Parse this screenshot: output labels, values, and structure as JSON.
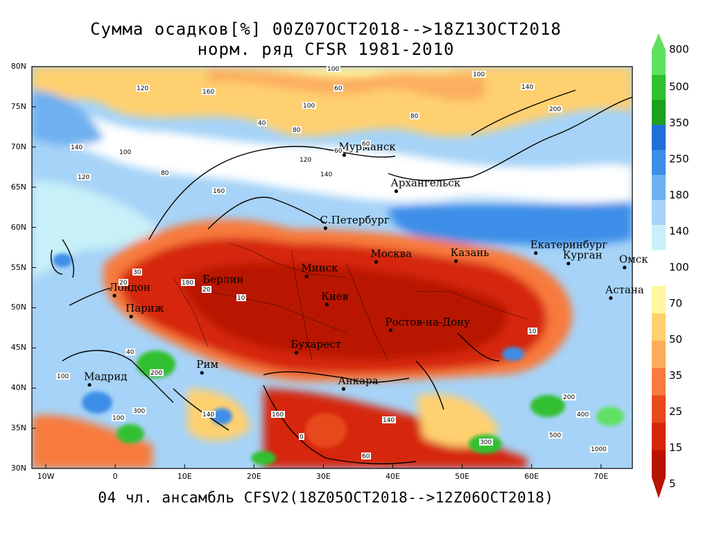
{
  "title": {
    "line1": "Сумма осадков[%] 00Z07OCT2018-->18Z13OCT2018",
    "line2": "норм. ряд CFSR 1981-2010"
  },
  "footer": "04 чл. ансамбль CFSV2(18Z05OCT2018-->12Z06OCT2018)",
  "axes": {
    "lat_labels": [
      "80N",
      "75N",
      "70N",
      "65N",
      "60N",
      "55N",
      "50N",
      "45N",
      "40N",
      "35N",
      "30N"
    ],
    "lon_labels": [
      "10W",
      "0",
      "10E",
      "20E",
      "30E",
      "40E",
      "50E",
      "60E",
      "70E"
    ]
  },
  "colorbar": {
    "labels": [
      "800",
      "500",
      "350",
      "250",
      "180",
      "140",
      "100",
      "70",
      "50",
      "35",
      "25",
      "15",
      "5"
    ],
    "colors": [
      "#60e060",
      "#30c030",
      "#1ea01e",
      "#1e6fd8",
      "#3c8ee8",
      "#6eb0f0",
      "#a6d3f7",
      "#c8f0f8",
      "#fff8a0",
      "#ffd070",
      "#fcae5e",
      "#f87a3c",
      "#e84a1c",
      "#d62808",
      "#b81400"
    ]
  },
  "cities": [
    {
      "name": "Мурманск",
      "lon": 33,
      "lat": 69
    },
    {
      "name": "Архангельск",
      "lon": 40.5,
      "lat": 64.5
    },
    {
      "name": "С.Петербург",
      "lon": 30.3,
      "lat": 59.9
    },
    {
      "name": "Москва",
      "lon": 37.6,
      "lat": 55.7
    },
    {
      "name": "Казань",
      "lon": 49.1,
      "lat": 55.8
    },
    {
      "name": "Екатеринбург",
      "lon": 60.6,
      "lat": 56.8
    },
    {
      "name": "Курган",
      "lon": 65.3,
      "lat": 55.5
    },
    {
      "name": "Омск",
      "lon": 73.4,
      "lat": 55
    },
    {
      "name": "Астана",
      "lon": 71.4,
      "lat": 51.2
    },
    {
      "name": "Минск",
      "lon": 27.6,
      "lat": 53.9
    },
    {
      "name": "Киев",
      "lon": 30.5,
      "lat": 50.4
    },
    {
      "name": "Берлин",
      "lon": 13.4,
      "lat": 52.5
    },
    {
      "name": "Лондон",
      "lon": -0.1,
      "lat": 51.5
    },
    {
      "name": "Париж",
      "lon": 2.3,
      "lat": 48.9
    },
    {
      "name": "Ростов-на-Дону",
      "lon": 39.7,
      "lat": 47.2
    },
    {
      "name": "Бухарест",
      "lon": 26.1,
      "lat": 44.4
    },
    {
      "name": "Рим",
      "lon": 12.5,
      "lat": 41.9
    },
    {
      "name": "Мадрид",
      "lon": -3.7,
      "lat": 40.4
    },
    {
      "name": "Анкара",
      "lon": 32.9,
      "lat": 39.9
    }
  ],
  "contour_values": [
    "100",
    "60",
    "160",
    "120",
    "100",
    "40",
    "80",
    "60",
    "120",
    "140",
    "100",
    "80",
    "120",
    "140",
    "160",
    "80",
    "60",
    "100",
    "140",
    "200",
    "180",
    "20",
    "10",
    "30",
    "20",
    "10",
    "40",
    "200",
    "300",
    "140",
    "100",
    "160",
    "200",
    "300",
    "400",
    "500",
    "1000",
    "0",
    "140",
    "60",
    "100"
  ]
}
